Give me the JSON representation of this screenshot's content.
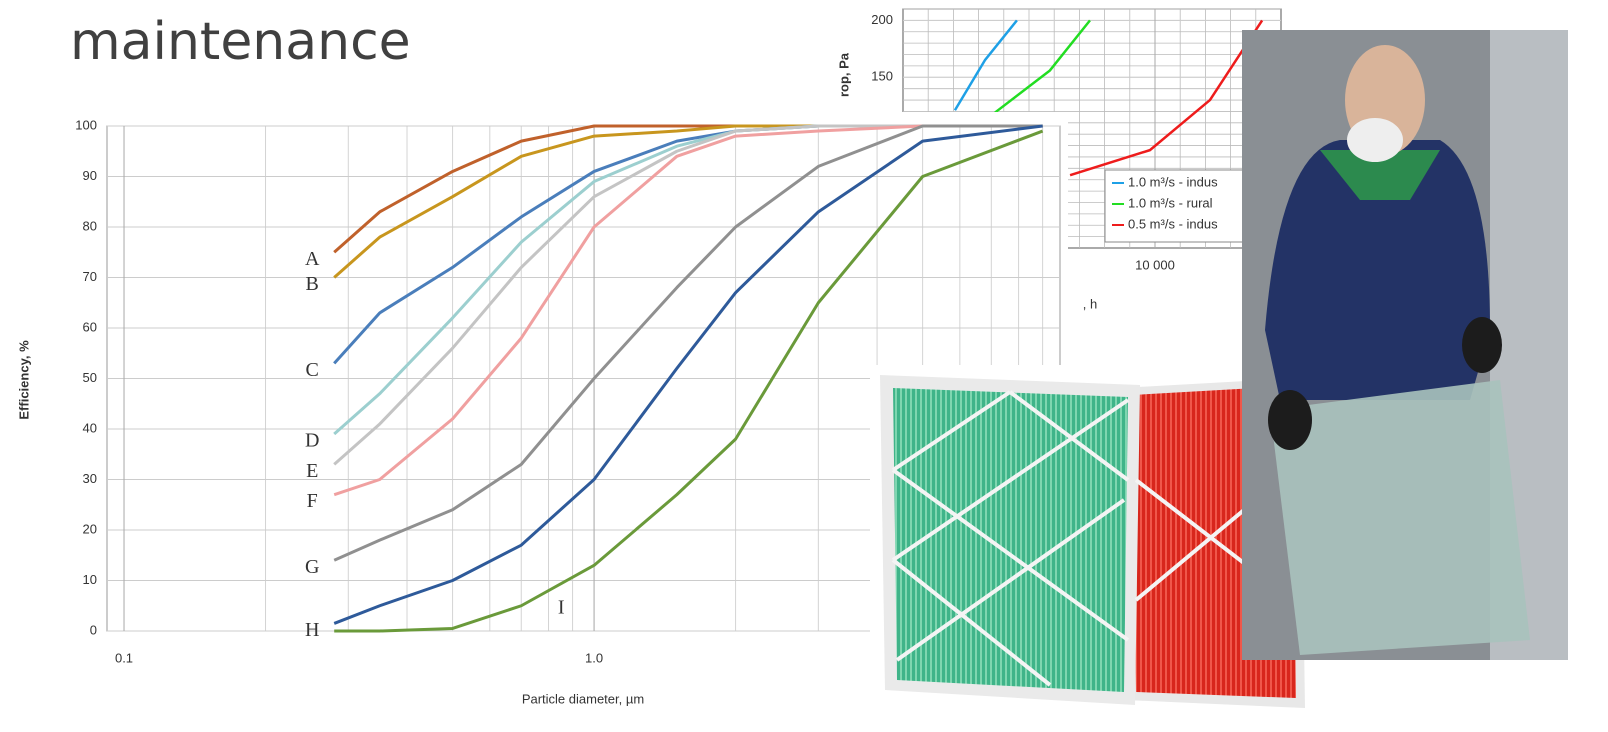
{
  "title": "maintenance",
  "chart_data": [
    {
      "type": "line",
      "xlabel": "Particle diameter, µm",
      "ylabel": "Efficiency, %",
      "xscale": "log",
      "grid": true,
      "xlim": [
        0.092,
        9.8
      ],
      "ylim": [
        0,
        100
      ],
      "xticks": [
        0.1,
        {
          "value": 1,
          "label": "1.0"
        }
      ],
      "yticks": [
        0,
        10,
        20,
        30,
        40,
        50,
        60,
        70,
        80,
        90,
        100
      ],
      "x": [
        0.28,
        0.35,
        0.5,
        0.7,
        1,
        1.5,
        2,
        3,
        5,
        9
      ],
      "series": [
        {
          "name": "A",
          "color": "#c0612b",
          "values": [
            75,
            83,
            91,
            97,
            100,
            100,
            100,
            100,
            100,
            100
          ]
        },
        {
          "name": "B",
          "color": "#c8961e",
          "values": [
            70,
            78,
            86,
            94,
            98,
            99,
            100,
            100,
            100,
            100
          ]
        },
        {
          "name": "C",
          "color": "#4a7ebb",
          "values": [
            53,
            63,
            72,
            82,
            91,
            97,
            99,
            100,
            100,
            100
          ]
        },
        {
          "name": "D",
          "color": "#9ccfcf",
          "values": [
            39,
            47,
            62,
            77,
            89,
            96,
            99,
            100,
            100,
            100
          ]
        },
        {
          "name": "E",
          "color": "#c4c4c4",
          "values": [
            33,
            41,
            56,
            72,
            86,
            95,
            99,
            100,
            100,
            100
          ]
        },
        {
          "name": "F",
          "color": "#f0a0a0",
          "values": [
            27,
            30,
            42,
            58,
            80,
            94,
            98,
            99,
            100,
            100
          ]
        },
        {
          "name": "G",
          "color": "#909090",
          "values": [
            14,
            18,
            24,
            33,
            50,
            68,
            80,
            92,
            100,
            100
          ]
        },
        {
          "name": "H",
          "color": "#2e5a9a",
          "values": [
            1.5,
            5,
            10,
            17,
            30,
            52,
            67,
            83,
            97,
            100
          ]
        },
        {
          "name": "I",
          "color": "#6a9a3a",
          "values": [
            0,
            0,
            0.5,
            5,
            13,
            27,
            38,
            65,
            90,
            99
          ]
        }
      ]
    },
    {
      "type": "line",
      "xlabel": ", h",
      "ylabel": "rop, Pa",
      "grid": true,
      "xlim": [
        0,
        15000
      ],
      "ylim": [
        0,
        210
      ],
      "xticks": [
        {
          "value": 10000,
          "label": "10 000"
        }
      ],
      "yticks": [
        150,
        200
      ],
      "series": [
        {
          "name": "1.0 m³/s - indus",
          "color": "#1ea0e6",
          "x": [
            2060,
            3250,
            4520
          ],
          "values": [
            121,
            165,
            200
          ]
        },
        {
          "name": "1.0 m³/s - rural",
          "color": "#22dd22",
          "x": [
            3650,
            5830,
            7420
          ],
          "values": [
            119,
            156,
            200
          ]
        },
        {
          "name": "0.5 m³/s - indus",
          "color": "#ee1c1c",
          "x": [
            6630,
            9800,
            12180,
            14250
          ],
          "values": [
            64,
            86,
            130,
            200
          ]
        }
      ]
    }
  ]
}
